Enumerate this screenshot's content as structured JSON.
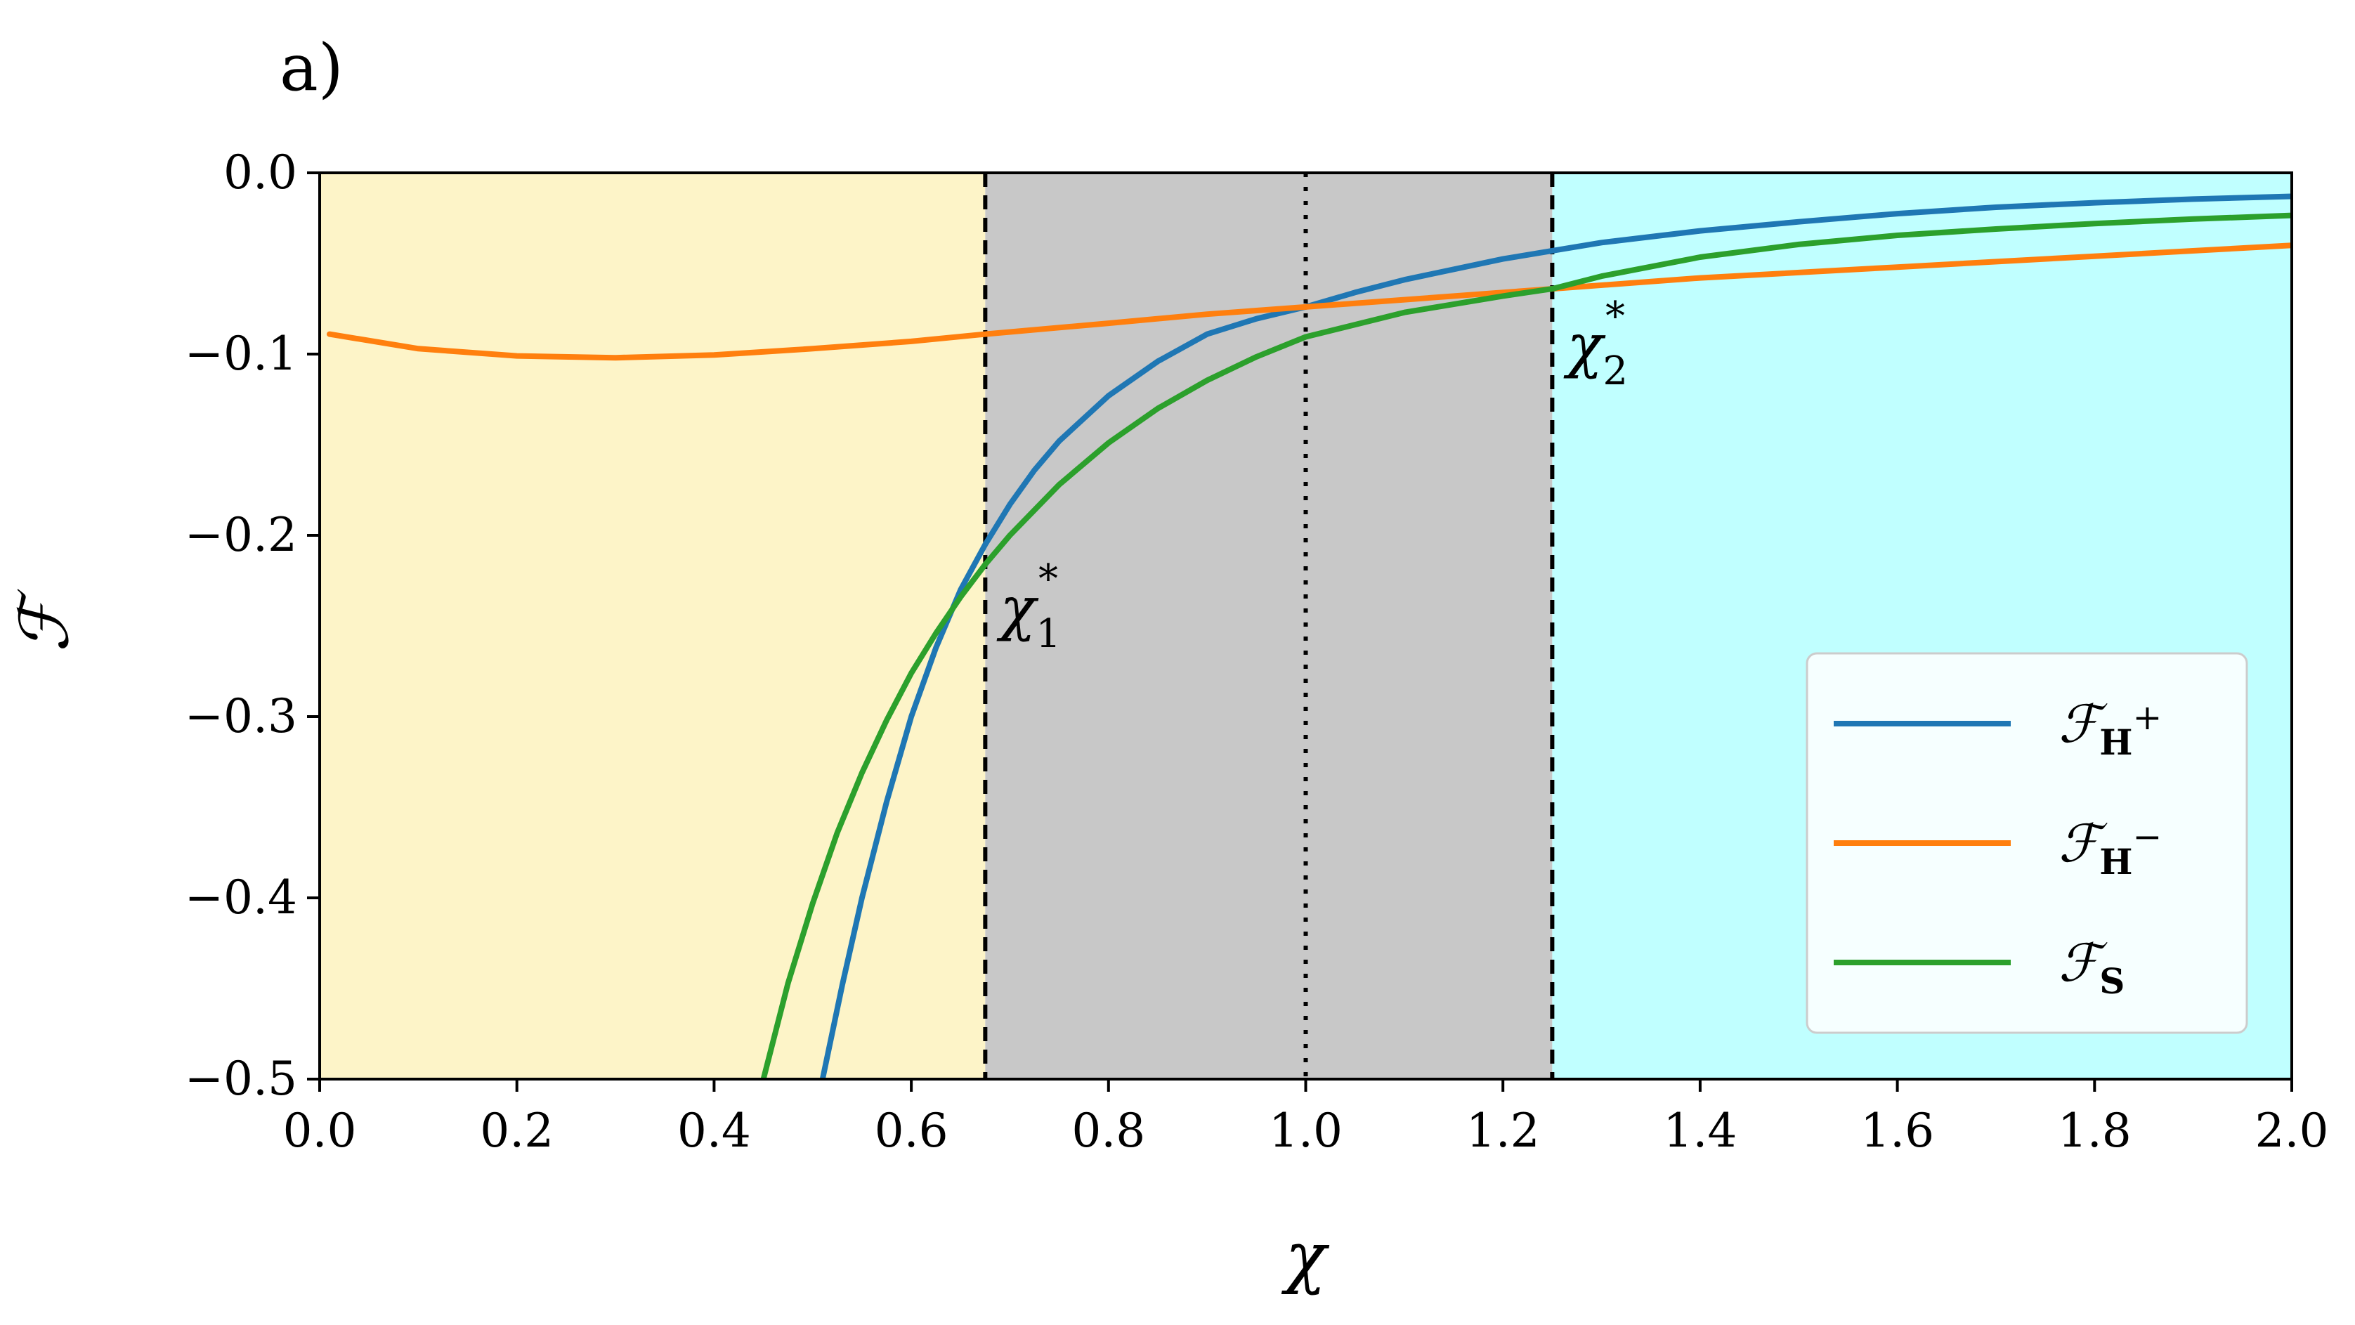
{
  "chart_data": {
    "type": "line",
    "panel_label": "a)",
    "title": "",
    "xlabel": "χ",
    "ylabel": "ℱ",
    "xlim": [
      0.0,
      2.0
    ],
    "ylim": [
      -0.5,
      0.0
    ],
    "x_ticks": [
      0.0,
      0.2,
      0.4,
      0.6,
      0.8,
      1.0,
      1.2,
      1.4,
      1.6,
      1.8,
      2.0
    ],
    "x_tick_labels": [
      "0.0",
      "0.2",
      "0.4",
      "0.6",
      "0.8",
      "1.0",
      "1.2",
      "1.4",
      "1.6",
      "1.8",
      "2.0"
    ],
    "y_ticks": [
      0.0,
      -0.1,
      -0.2,
      -0.3,
      -0.4,
      -0.5
    ],
    "y_tick_labels": [
      "0.0",
      "−0.1",
      "−0.2",
      "−0.3",
      "−0.4",
      "−0.5"
    ],
    "grid": false,
    "legend_position": "lower-right",
    "regions": [
      {
        "x_start": 0.0,
        "x_end": 0.675,
        "color": "#fdf4c8"
      },
      {
        "x_start": 0.675,
        "x_end": 1.25,
        "color": "#c8c8c8"
      },
      {
        "x_start": 1.25,
        "x_end": 2.0,
        "color": "#c0ffff"
      }
    ],
    "vlines": [
      {
        "x": 0.675,
        "style": "dashed"
      },
      {
        "x": 1.0,
        "style": "dotted"
      },
      {
        "x": 1.25,
        "style": "dashed"
      }
    ],
    "annotations": [
      {
        "text": "χ",
        "sub": "1",
        "sup": "*",
        "x": 0.69,
        "y": -0.24
      },
      {
        "text": "χ",
        "sub": "2",
        "sup": "*",
        "x": 1.265,
        "y": -0.095
      }
    ],
    "series": [
      {
        "name": "ℱ",
        "name_sub": "H",
        "name_sup": "+",
        "color": "#1f77b4",
        "x": [
          0.51,
          0.53,
          0.55,
          0.575,
          0.6,
          0.625,
          0.65,
          0.675,
          0.7,
          0.725,
          0.75,
          0.8,
          0.85,
          0.9,
          0.95,
          1.0,
          1.05,
          1.1,
          1.2,
          1.25,
          1.3,
          1.4,
          1.5,
          1.6,
          1.7,
          1.8,
          1.9,
          2.0
        ],
        "y": [
          -0.5,
          -0.448,
          -0.4,
          -0.347,
          -0.3,
          -0.262,
          -0.23,
          -0.205,
          -0.183,
          -0.164,
          -0.148,
          -0.123,
          -0.104,
          -0.089,
          -0.0805,
          -0.074,
          -0.066,
          -0.059,
          -0.0475,
          -0.043,
          -0.0385,
          -0.032,
          -0.027,
          -0.0225,
          -0.019,
          -0.0165,
          -0.0145,
          -0.013
        ]
      },
      {
        "name": "ℱ",
        "name_sub": "H",
        "name_sup": "−",
        "color": "#ff7f0e",
        "x": [
          0.01,
          0.1,
          0.2,
          0.3,
          0.4,
          0.5,
          0.6,
          0.675,
          0.8,
          0.9,
          1.0,
          1.1,
          1.25,
          1.4,
          1.6,
          1.8,
          2.0
        ],
        "y": [
          -0.089,
          -0.097,
          -0.101,
          -0.102,
          -0.1005,
          -0.097,
          -0.093,
          -0.089,
          -0.083,
          -0.078,
          -0.074,
          -0.07,
          -0.064,
          -0.058,
          -0.052,
          -0.046,
          -0.04
        ]
      },
      {
        "name": "ℱ",
        "name_sub": "S",
        "name_sup": "",
        "color": "#2ca02c",
        "x": [
          0.45,
          0.475,
          0.5,
          0.525,
          0.55,
          0.575,
          0.6,
          0.625,
          0.65,
          0.675,
          0.7,
          0.75,
          0.8,
          0.85,
          0.9,
          0.95,
          1.0,
          1.1,
          1.2,
          1.25,
          1.3,
          1.4,
          1.5,
          1.6,
          1.7,
          1.8,
          1.9,
          2.0
        ],
        "y": [
          -0.5,
          -0.447,
          -0.403,
          -0.364,
          -0.331,
          -0.302,
          -0.276,
          -0.254,
          -0.234,
          -0.216,
          -0.2,
          -0.172,
          -0.149,
          -0.13,
          -0.1145,
          -0.1015,
          -0.0905,
          -0.077,
          -0.068,
          -0.064,
          -0.057,
          -0.0465,
          -0.0395,
          -0.0345,
          -0.031,
          -0.028,
          -0.0255,
          -0.0235
        ]
      }
    ]
  }
}
